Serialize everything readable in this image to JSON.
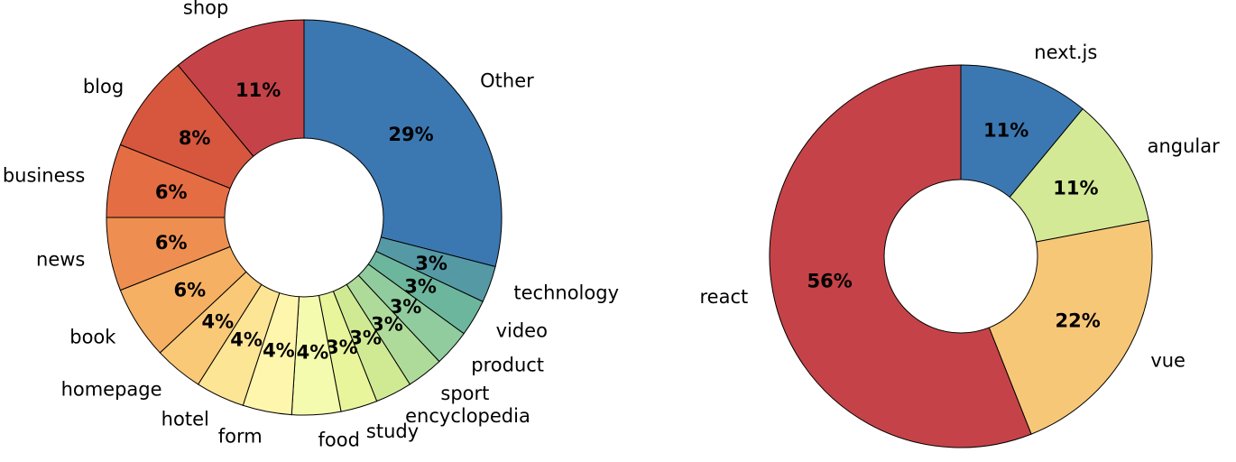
{
  "chart_data": [
    {
      "type": "pie",
      "donut": true,
      "start": "12 o'clock",
      "direction": "clockwise",
      "slices": [
        {
          "label": "Other",
          "value": 29,
          "pct_label": "29%",
          "color": "#3b78b1"
        },
        {
          "label": "technology",
          "value": 3,
          "pct_label": "3%",
          "color": "#5599a5"
        },
        {
          "label": "video",
          "value": 3,
          "pct_label": "3%",
          "color": "#6cb69d"
        },
        {
          "label": "product",
          "value": 3,
          "pct_label": "3%",
          "color": "#90cc9e"
        },
        {
          "label": "sport",
          "value": 3,
          "pct_label": "3%",
          "color": "#afdb9a"
        },
        {
          "label": "encyclopedia",
          "value": 3,
          "pct_label": "3%",
          "color": "#d0ea94"
        },
        {
          "label": "study",
          "value": 3,
          "pct_label": "3%",
          "color": "#e8f59b"
        },
        {
          "label": "food",
          "value": 4,
          "pct_label": "4%",
          "color": "#f5fbae"
        },
        {
          "label": "form",
          "value": 4,
          "pct_label": "4%",
          "color": "#fff6ae"
        },
        {
          "label": "hotel",
          "value": 4,
          "pct_label": "4%",
          "color": "#fde596"
        },
        {
          "label": "homepage",
          "value": 4,
          "pct_label": "4%",
          "color": "#f9c978"
        },
        {
          "label": "book",
          "value": 6,
          "pct_label": "6%",
          "color": "#f5b063"
        },
        {
          "label": "news",
          "value": 6,
          "pct_label": "6%",
          "color": "#ee8f51"
        },
        {
          "label": "business",
          "value": 6,
          "pct_label": "6%",
          "color": "#e56d43"
        },
        {
          "label": "blog",
          "value": 8,
          "pct_label": "8%",
          "color": "#d6573e"
        },
        {
          "label": "shop",
          "value": 11,
          "pct_label": "11%",
          "color": "#c54348"
        }
      ]
    },
    {
      "type": "pie",
      "donut": true,
      "start": "12 o'clock",
      "direction": "clockwise",
      "slices": [
        {
          "label": "next.js",
          "value": 11,
          "pct_label": "11%",
          "color": "#3b78b1"
        },
        {
          "label": "angular",
          "value": 11,
          "pct_label": "11%",
          "color": "#d3e996"
        },
        {
          "label": "vue",
          "value": 22,
          "pct_label": "22%",
          "color": "#f7c778"
        },
        {
          "label": "react",
          "value": 56,
          "pct_label": "56%",
          "color": "#c54348"
        }
      ]
    }
  ]
}
